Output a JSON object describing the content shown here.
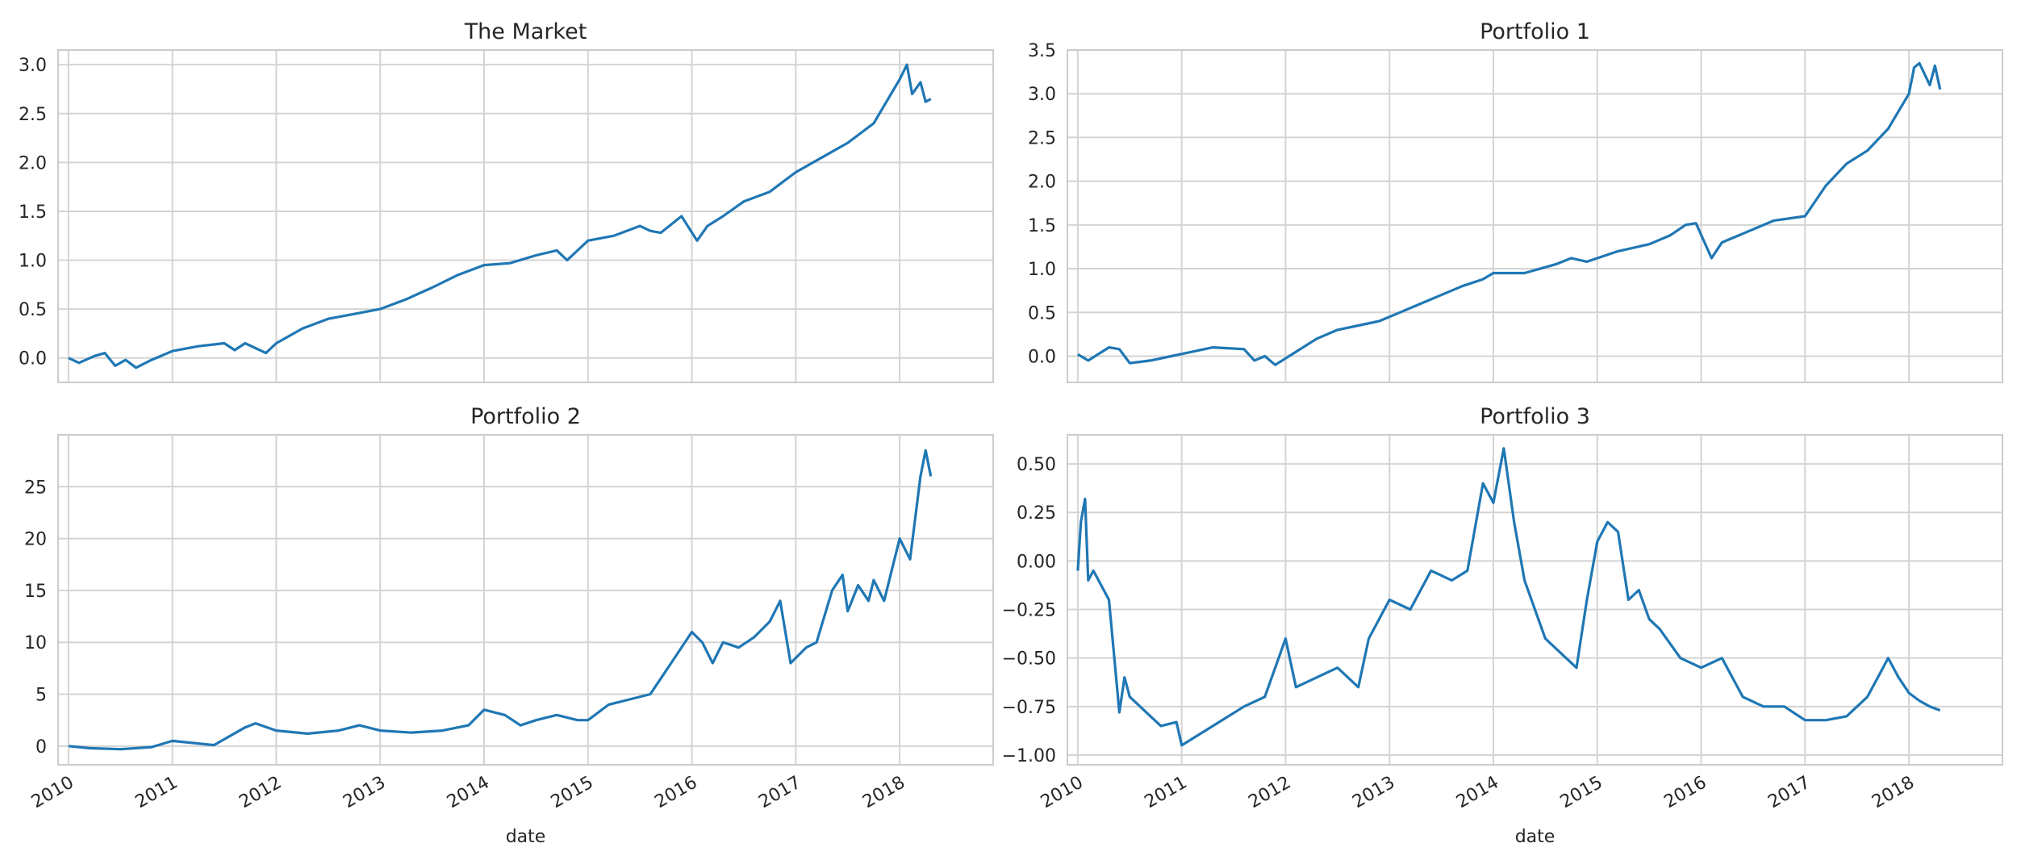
{
  "figure": {
    "line_color": "#1f77b4",
    "grid_color": "#d4d4d4",
    "spine_color": "#cccccc",
    "text_color": "#262626"
  },
  "chart_data": [
    {
      "type": "line",
      "title": "The Market",
      "xlabel": "",
      "ylabel": "",
      "xlim": [
        2009.9,
        2018.9
      ],
      "ylim": [
        -0.25,
        3.15
      ],
      "grid": true,
      "x_ticks": [
        2010,
        2011,
        2012,
        2013,
        2014,
        2015,
        2016,
        2017,
        2018
      ],
      "x_tick_labels_visible": false,
      "y_ticks": [
        0.0,
        0.5,
        1.0,
        1.5,
        2.0,
        2.5,
        3.0
      ],
      "y_tick_labels": [
        "0.0",
        "0.5",
        "1.0",
        "1.5",
        "2.0",
        "2.5",
        "3.0"
      ],
      "series": [
        {
          "x": [
            2010.0,
            2010.1,
            2010.25,
            2010.35,
            2010.45,
            2010.55,
            2010.65,
            2010.8,
            2011.0,
            2011.25,
            2011.5,
            2011.6,
            2011.7,
            2011.9,
            2012.0,
            2012.25,
            2012.5,
            2012.75,
            2013.0,
            2013.25,
            2013.5,
            2013.75,
            2014.0,
            2014.25,
            2014.5,
            2014.7,
            2014.8,
            2015.0,
            2015.25,
            2015.5,
            2015.6,
            2015.7,
            2015.9,
            2016.05,
            2016.15,
            2016.3,
            2016.5,
            2016.75,
            2017.0,
            2017.25,
            2017.5,
            2017.75,
            2018.0,
            2018.07,
            2018.12,
            2018.2,
            2018.25,
            2018.3
          ],
          "y": [
            0.0,
            -0.05,
            0.02,
            0.05,
            -0.08,
            -0.02,
            -0.1,
            -0.02,
            0.07,
            0.12,
            0.15,
            0.08,
            0.15,
            0.05,
            0.15,
            0.3,
            0.4,
            0.45,
            0.5,
            0.6,
            0.72,
            0.85,
            0.95,
            0.97,
            1.05,
            1.1,
            1.0,
            1.2,
            1.25,
            1.35,
            1.3,
            1.28,
            1.45,
            1.2,
            1.35,
            1.45,
            1.6,
            1.7,
            1.9,
            2.05,
            2.2,
            2.4,
            2.85,
            3.0,
            2.7,
            2.82,
            2.62,
            2.65
          ]
        }
      ]
    },
    {
      "type": "line",
      "title": "Portfolio 1",
      "xlabel": "",
      "ylabel": "",
      "xlim": [
        2009.9,
        2018.9
      ],
      "ylim": [
        -0.3,
        3.5
      ],
      "grid": true,
      "x_ticks": [
        2010,
        2011,
        2012,
        2013,
        2014,
        2015,
        2016,
        2017,
        2018
      ],
      "x_tick_labels_visible": false,
      "y_ticks": [
        0.0,
        0.5,
        1.0,
        1.5,
        2.0,
        2.5,
        3.0,
        3.5
      ],
      "y_tick_labels": [
        "0.0",
        "0.5",
        "1.0",
        "1.5",
        "2.0",
        "2.5",
        "3.0",
        "3.5"
      ],
      "series": [
        {
          "x": [
            2010.0,
            2010.1,
            2010.3,
            2010.4,
            2010.5,
            2010.7,
            2010.9,
            2011.1,
            2011.3,
            2011.6,
            2011.7,
            2011.8,
            2011.9,
            2012.1,
            2012.3,
            2012.5,
            2012.7,
            2012.9,
            2013.1,
            2013.4,
            2013.7,
            2013.9,
            2014.0,
            2014.3,
            2014.6,
            2014.75,
            2014.9,
            2015.2,
            2015.5,
            2015.7,
            2015.85,
            2015.95,
            2016.1,
            2016.2,
            2016.5,
            2016.7,
            2017.0,
            2017.2,
            2017.4,
            2017.6,
            2017.8,
            2018.0,
            2018.05,
            2018.1,
            2018.2,
            2018.25,
            2018.3
          ],
          "y": [
            0.02,
            -0.05,
            0.1,
            0.08,
            -0.08,
            -0.05,
            0.0,
            0.05,
            0.1,
            0.08,
            -0.05,
            0.0,
            -0.1,
            0.05,
            0.2,
            0.3,
            0.35,
            0.4,
            0.5,
            0.65,
            0.8,
            0.88,
            0.95,
            0.95,
            1.05,
            1.12,
            1.08,
            1.2,
            1.28,
            1.38,
            1.5,
            1.52,
            1.12,
            1.3,
            1.45,
            1.55,
            1.6,
            1.95,
            2.2,
            2.35,
            2.6,
            3.0,
            3.3,
            3.35,
            3.1,
            3.32,
            3.05
          ]
        }
      ]
    },
    {
      "type": "line",
      "title": "Portfolio 2",
      "xlabel": "date",
      "ylabel": "",
      "xlim": [
        2009.9,
        2018.9
      ],
      "ylim": [
        -1.8,
        30
      ],
      "grid": true,
      "x_ticks": [
        2010,
        2011,
        2012,
        2013,
        2014,
        2015,
        2016,
        2017,
        2018
      ],
      "x_tick_labels": [
        "2010",
        "2011",
        "2012",
        "2013",
        "2014",
        "2015",
        "2016",
        "2017",
        "2018"
      ],
      "y_ticks": [
        0,
        5,
        10,
        15,
        20,
        25
      ],
      "y_tick_labels": [
        "0",
        "5",
        "10",
        "15",
        "20",
        "25"
      ],
      "series": [
        {
          "x": [
            2010.0,
            2010.2,
            2010.5,
            2010.8,
            2011.0,
            2011.2,
            2011.4,
            2011.7,
            2011.8,
            2012.0,
            2012.3,
            2012.6,
            2012.8,
            2013.0,
            2013.3,
            2013.6,
            2013.85,
            2014.0,
            2014.2,
            2014.35,
            2014.5,
            2014.7,
            2014.9,
            2015.0,
            2015.2,
            2015.4,
            2015.6,
            2015.8,
            2016.0,
            2016.1,
            2016.2,
            2016.3,
            2016.45,
            2016.6,
            2016.75,
            2016.85,
            2016.95,
            2017.1,
            2017.2,
            2017.35,
            2017.45,
            2017.5,
            2017.6,
            2017.7,
            2017.75,
            2017.85,
            2018.0,
            2018.1,
            2018.2,
            2018.25,
            2018.3
          ],
          "y": [
            0.0,
            -0.2,
            -0.3,
            -0.1,
            0.5,
            0.3,
            0.1,
            1.8,
            2.2,
            1.5,
            1.2,
            1.5,
            2.0,
            1.5,
            1.3,
            1.5,
            2.0,
            3.5,
            3.0,
            2.0,
            2.5,
            3.0,
            2.5,
            2.5,
            4.0,
            4.5,
            5.0,
            8.0,
            11.0,
            10.0,
            8.0,
            10.0,
            9.5,
            10.5,
            12.0,
            14.0,
            8.0,
            9.5,
            10.0,
            15.0,
            16.5,
            13.0,
            15.5,
            14.0,
            16.0,
            14.0,
            20.0,
            18.0,
            26.0,
            28.5,
            26.0
          ]
        }
      ]
    },
    {
      "type": "line",
      "title": "Portfolio 3",
      "xlabel": "date",
      "ylabel": "",
      "xlim": [
        2009.9,
        2018.9
      ],
      "ylim": [
        -1.05,
        0.65
      ],
      "grid": true,
      "x_ticks": [
        2010,
        2011,
        2012,
        2013,
        2014,
        2015,
        2016,
        2017,
        2018
      ],
      "x_tick_labels": [
        "2010",
        "2011",
        "2012",
        "2013",
        "2014",
        "2015",
        "2016",
        "2017",
        "2018"
      ],
      "y_ticks": [
        -1.0,
        -0.75,
        -0.5,
        -0.25,
        0.0,
        0.25,
        0.5
      ],
      "y_tick_labels": [
        "−1.00",
        "−0.75",
        "−0.50",
        "−0.25",
        "0.00",
        "0.25",
        "0.50"
      ],
      "series": [
        {
          "x": [
            2010.0,
            2010.03,
            2010.07,
            2010.1,
            2010.15,
            2010.2,
            2010.3,
            2010.4,
            2010.45,
            2010.5,
            2010.6,
            2010.7,
            2010.8,
            2010.95,
            2011.0,
            2011.3,
            2011.6,
            2011.8,
            2011.9,
            2012.0,
            2012.1,
            2012.3,
            2012.5,
            2012.7,
            2012.8,
            2012.9,
            2013.0,
            2013.2,
            2013.4,
            2013.6,
            2013.75,
            2013.9,
            2014.0,
            2014.1,
            2014.2,
            2014.3,
            2014.5,
            2014.7,
            2014.8,
            2014.9,
            2015.0,
            2015.1,
            2015.2,
            2015.3,
            2015.4,
            2015.5,
            2015.6,
            2015.8,
            2016.0,
            2016.2,
            2016.4,
            2016.6,
            2016.8,
            2017.0,
            2017.2,
            2017.4,
            2017.6,
            2017.7,
            2017.8,
            2017.9,
            2018.0,
            2018.1,
            2018.2,
            2018.3
          ],
          "y": [
            -0.05,
            0.2,
            0.32,
            -0.1,
            -0.05,
            -0.1,
            -0.2,
            -0.78,
            -0.6,
            -0.7,
            -0.75,
            -0.8,
            -0.85,
            -0.83,
            -0.95,
            -0.85,
            -0.75,
            -0.7,
            -0.55,
            -0.4,
            -0.65,
            -0.6,
            -0.55,
            -0.65,
            -0.4,
            -0.3,
            -0.2,
            -0.25,
            -0.05,
            -0.1,
            -0.05,
            0.4,
            0.3,
            0.58,
            0.2,
            -0.1,
            -0.4,
            -0.5,
            -0.55,
            -0.2,
            0.1,
            0.2,
            0.15,
            -0.2,
            -0.15,
            -0.3,
            -0.35,
            -0.5,
            -0.55,
            -0.5,
            -0.7,
            -0.75,
            -0.75,
            -0.82,
            -0.82,
            -0.8,
            -0.7,
            -0.6,
            -0.5,
            -0.6,
            -0.68,
            -0.72,
            -0.75,
            -0.77
          ]
        }
      ]
    }
  ]
}
